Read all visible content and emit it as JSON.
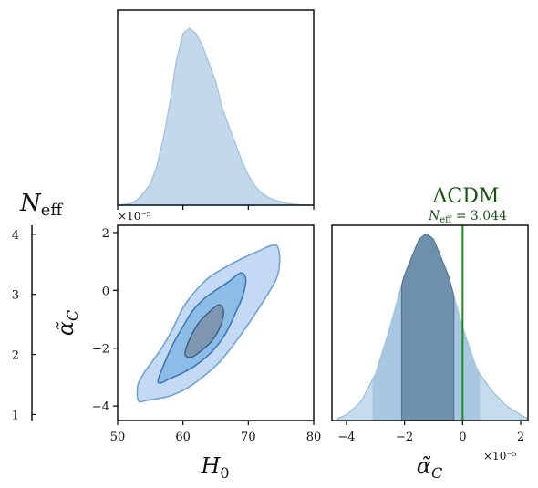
{
  "chart_data": [
    {
      "panel": "marginal-H0",
      "type": "area",
      "x": [
        50,
        52,
        53,
        54,
        55,
        56,
        57,
        58,
        59,
        60,
        61,
        62,
        63,
        64,
        65,
        66,
        67,
        68,
        69,
        70,
        71,
        72,
        73,
        74,
        75,
        76,
        77,
        78,
        80
      ],
      "values": [
        0.0,
        0.01,
        0.03,
        0.07,
        0.12,
        0.22,
        0.38,
        0.58,
        0.82,
        0.97,
        1.0,
        0.97,
        0.9,
        0.8,
        0.7,
        0.55,
        0.45,
        0.35,
        0.25,
        0.17,
        0.11,
        0.07,
        0.045,
        0.03,
        0.02,
        0.01,
        0.005,
        0.002,
        0.0
      ],
      "xlim": [
        50,
        80
      ],
      "color": "#a9c8e0"
    },
    {
      "panel": "joint-H0-alphaC",
      "type": "contour",
      "xlabel": "H_0",
      "ylabel": "α̃_C",
      "x_ticks": [
        "50",
        "60",
        "70",
        "80"
      ],
      "y_ticks": [
        "2",
        "0",
        "−2",
        "−4"
      ],
      "y_tick_values": [
        2,
        0,
        -2,
        -4
      ],
      "x_tick_values": [
        50,
        60,
        70,
        80
      ],
      "xlim": [
        50,
        80
      ],
      "ylim": [
        -4.5,
        2.25
      ],
      "y_offset_label": "×10⁻⁵",
      "contours": [
        {
          "level": "outer",
          "fill": "#c4d9f3",
          "stroke": "#6fa3d6",
          "points": [
            [
              53.0,
              -3.6
            ],
            [
              53.2,
              -3.2
            ],
            [
              54.2,
              -2.8
            ],
            [
              55.5,
              -2.4
            ],
            [
              57,
              -1.9
            ],
            [
              58.5,
              -1.3
            ],
            [
              60,
              -0.6
            ],
            [
              62,
              0
            ],
            [
              64,
              0.45
            ],
            [
              66.5,
              0.8
            ],
            [
              69,
              1.1
            ],
            [
              71.5,
              1.35
            ],
            [
              73.5,
              1.55
            ],
            [
              74.5,
              1.5
            ],
            [
              74.8,
              1.0
            ],
            [
              74.3,
              0.4
            ],
            [
              72.5,
              -0.3
            ],
            [
              70.5,
              -1.0
            ],
            [
              68,
              -1.8
            ],
            [
              65.5,
              -2.5
            ],
            [
              63,
              -3.0
            ],
            [
              60.5,
              -3.4
            ],
            [
              58,
              -3.65
            ],
            [
              56,
              -3.75
            ],
            [
              54.5,
              -3.8
            ],
            [
              53.3,
              -3.85
            ]
          ]
        },
        {
          "level": "middle",
          "fill": "#8bbde7",
          "stroke": "#3f78b8",
          "points": [
            [
              56.2,
              -3.1
            ],
            [
              57.2,
              -2.5
            ],
            [
              58.5,
              -1.85
            ],
            [
              60,
              -1.25
            ],
            [
              61.5,
              -0.7
            ],
            [
              63.2,
              -0.3
            ],
            [
              65,
              0
            ],
            [
              67,
              0.3
            ],
            [
              68.8,
              0.6
            ],
            [
              69.6,
              0.4
            ],
            [
              69.2,
              -0.15
            ],
            [
              68,
              -0.8
            ],
            [
              66.5,
              -1.5
            ],
            [
              64.5,
              -2.1
            ],
            [
              62.2,
              -2.55
            ],
            [
              60,
              -2.85
            ],
            [
              58,
              -3.05
            ],
            [
              56.6,
              -3.2
            ]
          ]
        },
        {
          "level": "inner",
          "fill": "#7e96b0",
          "stroke": "#3d5e82",
          "points": [
            [
              60.3,
              -2.2
            ],
            [
              61.2,
              -1.6
            ],
            [
              62.5,
              -1.1
            ],
            [
              64,
              -0.75
            ],
            [
              65.5,
              -0.5
            ],
            [
              66.2,
              -0.7
            ],
            [
              65.8,
              -1.2
            ],
            [
              64.6,
              -1.7
            ],
            [
              63,
              -2.05
            ],
            [
              61.4,
              -2.3
            ]
          ]
        }
      ]
    },
    {
      "panel": "marginal-alphaC",
      "type": "area",
      "xlabel": "α̃_C",
      "x_ticks": [
        "−4",
        "−2",
        "0",
        "2"
      ],
      "x_tick_values": [
        -4,
        -2,
        0,
        2
      ],
      "xlim": [
        -4.5,
        2.25
      ],
      "x_offset_label": "×10⁻⁵",
      "x": [
        -4.5,
        -4.0,
        -3.5,
        -3.0,
        -2.5,
        -2.0,
        -1.5,
        -1.25,
        -1.0,
        -0.5,
        0.0,
        0.5,
        1.0,
        1.5,
        2.0,
        2.25
      ],
      "values": [
        0.0,
        0.03,
        0.1,
        0.25,
        0.5,
        0.78,
        0.97,
        1.0,
        0.97,
        0.78,
        0.5,
        0.27,
        0.16,
        0.08,
        0.03,
        0.01
      ],
      "outer_range": [
        -3.1,
        0.6
      ],
      "inner_range": [
        -2.1,
        -0.3
      ],
      "outer_color": "#a8c8e2",
      "inner_color": "#6e90ac",
      "reference_line": {
        "x": 0,
        "color": "#1f8a1f",
        "label": "ΛCDM",
        "sublabel": "N_eff = 3.044"
      }
    },
    {
      "panel": "Neff-colorbar",
      "type": "colorbar",
      "label": "N_eff",
      "ticks": [
        "4",
        "3",
        "2",
        "1"
      ],
      "tick_values": [
        4,
        3,
        2,
        1
      ],
      "lim": [
        0.9,
        4.15
      ]
    }
  ]
}
